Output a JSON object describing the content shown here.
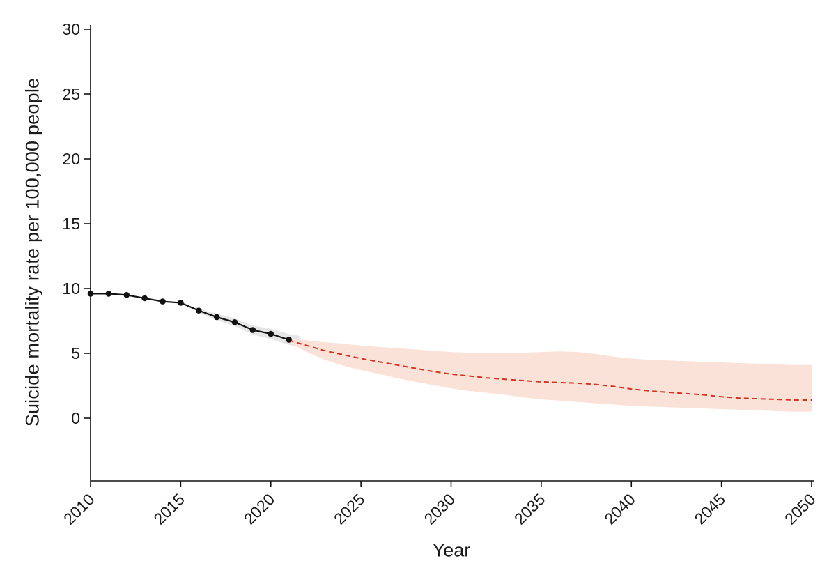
{
  "chart_data": {
    "type": "line",
    "title": "",
    "xlabel": "Year",
    "ylabel": "Suicide mortality rate per 100,000 people",
    "xlim": [
      2010,
      2050
    ],
    "ylim": [
      0,
      30
    ],
    "x_ticks": [
      2010,
      2015,
      2020,
      2025,
      2030,
      2035,
      2040,
      2045,
      2050
    ],
    "y_ticks": [
      0,
      5,
      10,
      15,
      20,
      25,
      30
    ],
    "grid": false,
    "legend": "none",
    "colors": {
      "axis": "#111111",
      "text": "#1a1a1a",
      "observed": "#111111",
      "forecast": "#d6301f",
      "forecast_band": "#fbe2d8",
      "observed_band": "#d9d9d9"
    },
    "bands": [
      {
        "name": "observed-smoothing-ci",
        "color": "#d9d9d9",
        "opacity": 0.65,
        "x": [
          2016,
          2017,
          2018,
          2019,
          2020,
          2021,
          2021.6
        ],
        "lower": [
          8.15,
          7.55,
          7.1,
          6.45,
          6.1,
          5.65,
          5.45
        ],
        "upper": [
          8.45,
          8.05,
          7.7,
          7.15,
          6.9,
          6.5,
          6.35
        ]
      },
      {
        "name": "forecast-ci",
        "color": "#fbe2d8",
        "opacity": 1,
        "x": [
          2021,
          2022,
          2023,
          2024,
          2025,
          2026,
          2027,
          2028,
          2029,
          2030,
          2031,
          2032,
          2033,
          2034,
          2035,
          2036,
          2037,
          2038,
          2039,
          2040,
          2041,
          2042,
          2043,
          2044,
          2045,
          2046,
          2047,
          2048,
          2049,
          2050
        ],
        "lower": [
          5.85,
          5.1,
          4.5,
          4.05,
          3.7,
          3.4,
          3.1,
          2.8,
          2.55,
          2.3,
          2.1,
          1.95,
          1.8,
          1.6,
          1.45,
          1.35,
          1.25,
          1.15,
          1.05,
          0.95,
          0.9,
          0.85,
          0.8,
          0.75,
          0.7,
          0.65,
          0.6,
          0.55,
          0.5,
          0.5
        ],
        "upper": [
          6.15,
          6.0,
          5.85,
          5.75,
          5.6,
          5.5,
          5.4,
          5.3,
          5.2,
          5.1,
          5.05,
          5.0,
          5.0,
          5.05,
          5.1,
          5.15,
          5.1,
          4.95,
          4.75,
          4.6,
          4.5,
          4.45,
          4.4,
          4.35,
          4.3,
          4.25,
          4.2,
          4.15,
          4.1,
          4.1
        ]
      }
    ],
    "series": [
      {
        "name": "forecast",
        "color": "#d6301f",
        "width": 2,
        "markers": false,
        "dash": "7 5",
        "x": [
          2021,
          2022,
          2023,
          2024,
          2025,
          2026,
          2027,
          2028,
          2029,
          2030,
          2031,
          2032,
          2033,
          2034,
          2035,
          2036,
          2037,
          2038,
          2039,
          2040,
          2041,
          2042,
          2043,
          2044,
          2045,
          2046,
          2047,
          2048,
          2049,
          2050
        ],
        "y": [
          6.0,
          5.6,
          5.2,
          4.9,
          4.6,
          4.35,
          4.1,
          3.85,
          3.6,
          3.4,
          3.25,
          3.1,
          3.0,
          2.9,
          2.8,
          2.75,
          2.7,
          2.6,
          2.45,
          2.25,
          2.1,
          2.0,
          1.9,
          1.8,
          1.65,
          1.55,
          1.5,
          1.45,
          1.4,
          1.4
        ]
      },
      {
        "name": "observed",
        "color": "#111111",
        "width": 2.2,
        "markers": true,
        "dash": null,
        "x": [
          2010,
          2011,
          2012,
          2013,
          2014,
          2015,
          2016,
          2017,
          2018,
          2019,
          2020,
          2021
        ],
        "y": [
          9.6,
          9.6,
          9.5,
          9.25,
          9.0,
          8.9,
          8.3,
          7.8,
          7.4,
          6.8,
          6.5,
          6.05
        ]
      }
    ]
  }
}
